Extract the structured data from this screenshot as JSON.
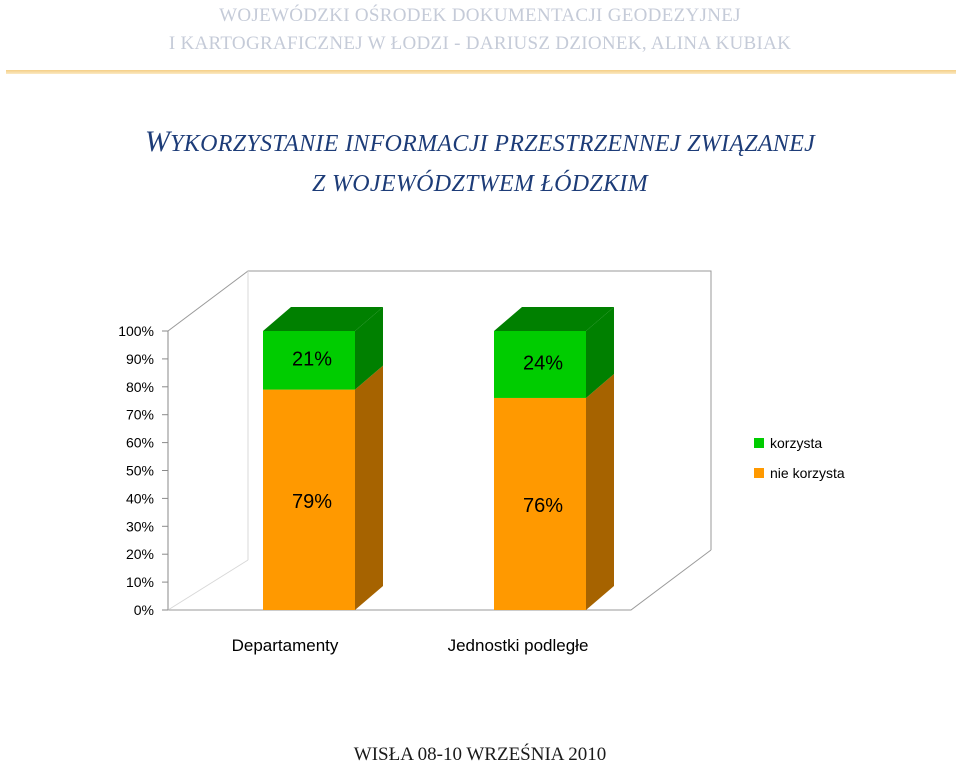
{
  "header": {
    "line1": "WOJEWÓDZKI OŚRODEK DOKUMENTACJI GEODEZYJNEJ",
    "line2": "I KARTOGRAFICZNEJ W ŁODZI - DARIUSZ DZIONEK, ALINA KUBIAK"
  },
  "title": {
    "line1_cap": "W",
    "line1_rest": "YKORZYSTANIE INFORMACJI PRZESTRZENNEJ ZWIĄZANEJ",
    "line2": "Z WOJEWÓDZTWEM ŁÓDZKIM"
  },
  "footer": "WISŁA 08-10 WRZEŚNIA 2010",
  "chart_data": {
    "type": "bar",
    "stacked": true,
    "percent_stacked": true,
    "three_d": true,
    "categories": [
      "Departamenty",
      "Jednostki podległe"
    ],
    "series": [
      {
        "name": "nie korzysta",
        "values": [
          79,
          76
        ],
        "labels": [
          "79%",
          "76%"
        ],
        "color": "#ff9900",
        "side_color": "#a66300"
      },
      {
        "name": "korzysta",
        "values": [
          21,
          24
        ],
        "labels": [
          "21%",
          "24%"
        ],
        "color": "#00cc00",
        "side_color": "#008000"
      }
    ],
    "y_ticks": [
      "0%",
      "10%",
      "20%",
      "30%",
      "40%",
      "50%",
      "60%",
      "70%",
      "80%",
      "90%",
      "100%"
    ],
    "ylim": [
      0,
      100
    ],
    "grid": false,
    "legend_position": "right",
    "legend_order": [
      "korzysta",
      "nie korzysta"
    ],
    "title": "",
    "xlabel": "",
    "ylabel": ""
  }
}
